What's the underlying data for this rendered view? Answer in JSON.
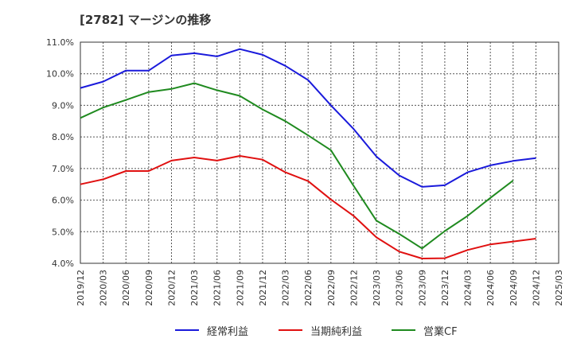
{
  "title": "[2782]  マージンの推移",
  "chart_data": {
    "type": "line",
    "title": "[2782]  マージンの推移",
    "xlabel": "",
    "ylabel": "",
    "ylim": [
      4.0,
      11.0
    ],
    "yticks": [
      "4.0%",
      "5.0%",
      "6.0%",
      "7.0%",
      "8.0%",
      "9.0%",
      "10.0%",
      "11.0%"
    ],
    "x": [
      "2019/12",
      "2020/03",
      "2020/06",
      "2020/09",
      "2020/12",
      "2021/03",
      "2021/06",
      "2021/09",
      "2021/12",
      "2022/03",
      "2022/06",
      "2022/09",
      "2022/12",
      "2023/03",
      "2023/06",
      "2023/09",
      "2023/12",
      "2024/03",
      "2024/06",
      "2024/09",
      "2024/12",
      "2025/03"
    ],
    "grid": true,
    "legend_position": "bottom",
    "series": [
      {
        "name": "経常利益",
        "color": "#1a1adb",
        "values": [
          9.55,
          9.75,
          10.1,
          10.1,
          10.58,
          10.65,
          10.55,
          10.78,
          10.6,
          10.25,
          9.8,
          9.0,
          8.25,
          7.38,
          6.78,
          6.42,
          6.47,
          6.88,
          7.1,
          7.24,
          7.33,
          null
        ]
      },
      {
        "name": "当期純利益",
        "color": "#e01010",
        "values": [
          6.5,
          6.66,
          6.92,
          6.92,
          7.25,
          7.35,
          7.25,
          7.4,
          7.28,
          6.88,
          6.6,
          6.02,
          5.5,
          4.82,
          4.37,
          4.15,
          4.16,
          4.42,
          4.6,
          4.69,
          4.78,
          null
        ]
      },
      {
        "name": "営業CF",
        "color": "#1f8a1f",
        "values": [
          8.6,
          8.93,
          9.17,
          9.42,
          9.52,
          9.7,
          9.48,
          9.3,
          8.87,
          8.5,
          8.05,
          7.58,
          6.45,
          5.35,
          4.93,
          4.47,
          5.02,
          5.5,
          6.07,
          6.62,
          null,
          null
        ]
      }
    ]
  }
}
